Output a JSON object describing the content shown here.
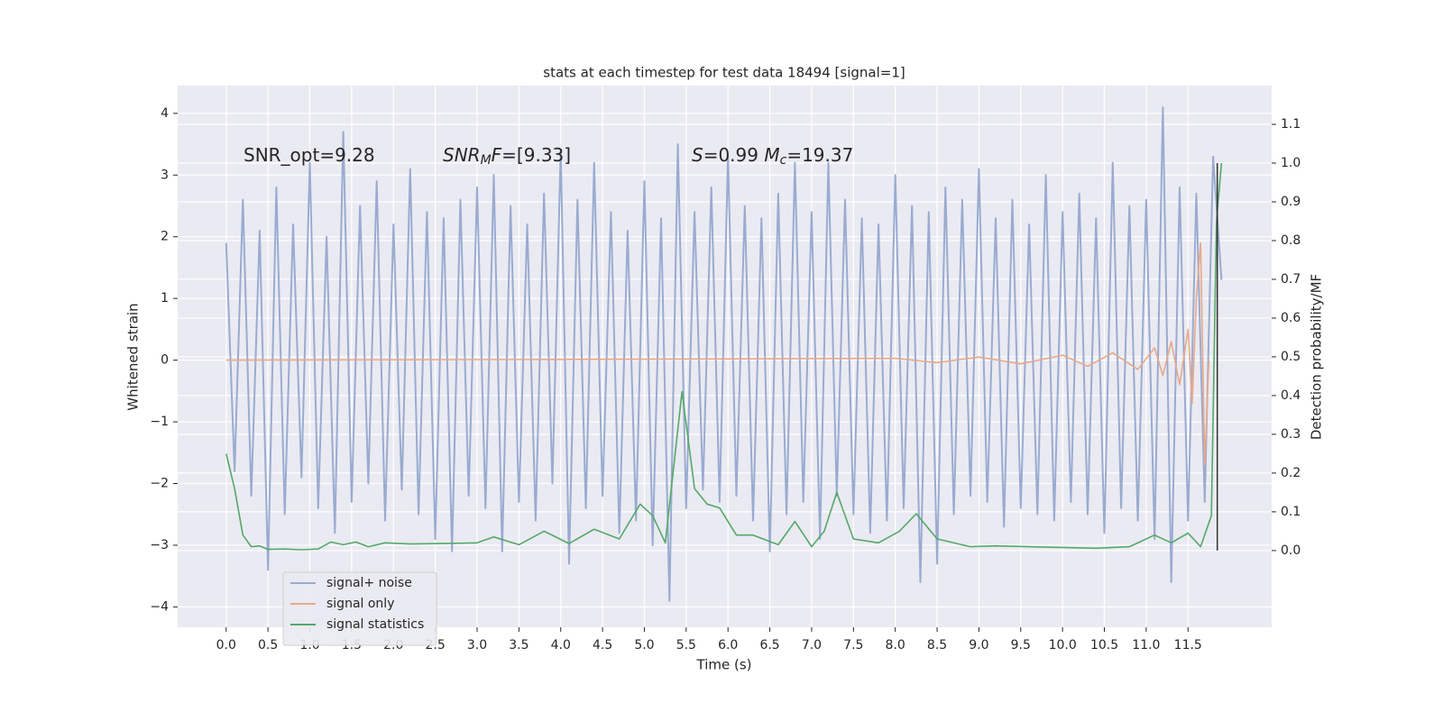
{
  "chart_data": {
    "type": "line",
    "title": "stats at each timestep for test data 18494 [signal=1]",
    "x_label": "Time (s)",
    "y_label": "Whitened strain",
    "y2_label": "Detection probability/MF",
    "xlim": [
      -0.58,
      12.5
    ],
    "ylim": [
      -4.33,
      4.45
    ],
    "y2lim": [
      -0.198,
      1.2
    ],
    "grid": true,
    "legend": "lower left",
    "xticks": [
      {
        "value": 0,
        "label": "0.0"
      },
      0.5,
      {
        "value": 1,
        "label": "1.0"
      },
      1.5,
      {
        "value": 2,
        "label": "2.0"
      },
      2.5,
      {
        "value": 3,
        "label": "3.0"
      },
      3.5,
      {
        "value": 4,
        "label": "4.0"
      },
      4.5,
      {
        "value": 5,
        "label": "5.0"
      },
      5.5,
      {
        "value": 6,
        "label": "6.0"
      },
      6.5,
      {
        "value": 7,
        "label": "7.0"
      },
      7.5,
      {
        "value": 8,
        "label": "8.0"
      },
      8.5,
      {
        "value": 9,
        "label": "9.0"
      },
      9.5,
      {
        "value": 10,
        "label": "10.0"
      },
      10.5,
      {
        "value": 11,
        "label": "11.0"
      },
      11.5
    ],
    "yticks": [
      {
        "value": -4,
        "label": "−4"
      },
      {
        "value": -3,
        "label": "−3"
      },
      {
        "value": -2,
        "label": "−2"
      },
      {
        "value": -1,
        "label": "−1"
      },
      0,
      1,
      2,
      3,
      4
    ],
    "y2ticks": [
      {
        "value": 0,
        "label": "0.0"
      },
      0.1,
      0.2,
      0.3,
      0.4,
      0.5,
      0.6,
      0.7,
      0.8,
      0.9,
      {
        "value": 1,
        "label": "1.0"
      },
      1.1
    ],
    "annotations": [
      [
        {
          "t": "SNR_opt=9.28",
          "style": "normal"
        }
      ],
      [
        {
          "t": "SNR",
          "style": "italic"
        },
        {
          "t": "M",
          "style": "sub"
        },
        {
          "t": "F",
          "style": "italic"
        },
        {
          "t": "=[9.33]",
          "style": "normal"
        }
      ],
      [
        {
          "t": "S",
          "style": "italic"
        },
        {
          "t": "=0.99   ",
          "style": "normal"
        },
        {
          "t": "M",
          "style": "italic"
        },
        {
          "t": "c",
          "style": "sub"
        },
        {
          "t": "=19.37",
          "style": "normal"
        }
      ]
    ],
    "series": [
      {
        "name": "signal+ noise",
        "color": "#9aabd0",
        "axis": "y",
        "x": [
          0.0,
          0.1,
          0.2,
          0.3,
          0.4,
          0.5,
          0.6,
          0.7,
          0.8,
          0.9,
          1.0,
          1.1,
          1.2,
          1.3,
          1.4,
          1.5,
          1.6,
          1.7,
          1.8,
          1.9,
          2.0,
          2.1,
          2.2,
          2.3,
          2.4,
          2.5,
          2.6,
          2.7,
          2.8,
          2.9,
          3.0,
          3.1,
          3.2,
          3.3,
          3.4,
          3.5,
          3.6,
          3.7,
          3.8,
          3.9,
          4.0,
          4.1,
          4.2,
          4.3,
          4.4,
          4.5,
          4.6,
          4.7,
          4.8,
          4.9,
          5.0,
          5.1,
          5.2,
          5.3,
          5.4,
          5.5,
          5.6,
          5.7,
          5.8,
          5.9,
          6.0,
          6.1,
          6.2,
          6.3,
          6.4,
          6.5,
          6.6,
          6.7,
          6.8,
          6.9,
          7.0,
          7.1,
          7.2,
          7.3,
          7.4,
          7.5,
          7.6,
          7.7,
          7.8,
          7.9,
          8.0,
          8.1,
          8.2,
          8.3,
          8.4,
          8.5,
          8.6,
          8.7,
          8.8,
          8.9,
          9.0,
          9.1,
          9.2,
          9.3,
          9.4,
          9.5,
          9.6,
          9.7,
          9.8,
          9.9,
          10.0,
          10.1,
          10.2,
          10.3,
          10.4,
          10.5,
          10.6,
          10.7,
          10.8,
          10.9,
          11.0,
          11.1,
          11.2,
          11.3,
          11.4,
          11.5,
          11.6,
          11.7,
          11.8,
          11.9
        ],
        "values": [
          1.9,
          -1.8,
          2.6,
          -2.2,
          2.1,
          -3.4,
          2.8,
          -2.5,
          2.2,
          -1.9,
          3.2,
          -2.4,
          2.0,
          -2.8,
          3.7,
          -2.3,
          2.5,
          -2.0,
          2.9,
          -2.6,
          2.2,
          -2.1,
          3.1,
          -2.5,
          2.4,
          -2.9,
          2.3,
          -3.1,
          2.6,
          -2.2,
          2.8,
          -2.4,
          3.0,
          -3.1,
          2.5,
          -2.3,
          2.2,
          -2.6,
          2.7,
          -2.0,
          3.4,
          -3.3,
          2.6,
          -2.4,
          3.2,
          -2.2,
          2.4,
          -2.8,
          2.1,
          -2.6,
          2.9,
          -3.0,
          2.3,
          -3.9,
          3.5,
          -2.4,
          2.4,
          -2.1,
          2.8,
          -2.3,
          3.3,
          -2.2,
          2.5,
          -2.6,
          2.3,
          -3.1,
          2.7,
          -2.5,
          3.2,
          -2.3,
          2.4,
          -2.9,
          3.2,
          -2.2,
          2.6,
          -2.5,
          2.3,
          -2.8,
          2.2,
          -2.6,
          3.0,
          -2.4,
          2.5,
          -3.6,
          2.4,
          -3.3,
          2.8,
          -2.5,
          2.6,
          -2.2,
          3.1,
          -2.3,
          2.3,
          -2.7,
          2.6,
          -2.4,
          2.2,
          -2.5,
          3.0,
          -2.6,
          2.4,
          -2.3,
          2.7,
          -2.5,
          2.3,
          -2.8,
          3.2,
          -2.4,
          2.5,
          -2.6,
          2.6,
          -2.9,
          4.1,
          -3.6,
          2.8,
          -2.6,
          2.7,
          -2.3,
          3.3,
          1.3
        ]
      },
      {
        "name": "signal only",
        "color": "#e8a98a",
        "axis": "y",
        "x": [
          0.0,
          4.0,
          8.0,
          8.5,
          9.0,
          9.5,
          10.0,
          10.3,
          10.6,
          10.9,
          11.1,
          11.2,
          11.3,
          11.4,
          11.5,
          11.55,
          11.6,
          11.65,
          11.7,
          11.75
        ],
        "values": [
          0,
          0.01,
          0.03,
          -0.04,
          0.05,
          -0.06,
          0.08,
          -0.1,
          0.12,
          -0.15,
          0.2,
          -0.25,
          0.3,
          -0.4,
          0.5,
          -0.7,
          1.0,
          1.9,
          -1.7,
          0
        ]
      },
      {
        "name": "signal statistics",
        "color": "#55a868",
        "axis": "y2",
        "x": [
          0.0,
          0.1,
          0.2,
          0.3,
          0.4,
          0.5,
          0.7,
          0.9,
          1.1,
          1.25,
          1.4,
          1.55,
          1.7,
          1.9,
          2.2,
          2.6,
          3.0,
          3.2,
          3.5,
          3.8,
          4.1,
          4.4,
          4.7,
          4.95,
          5.1,
          5.25,
          5.45,
          5.6,
          5.75,
          5.9,
          6.1,
          6.3,
          6.6,
          6.8,
          7.0,
          7.15,
          7.3,
          7.5,
          7.8,
          8.05,
          8.25,
          8.5,
          8.9,
          9.2,
          9.6,
          10.0,
          10.4,
          10.8,
          11.1,
          11.3,
          11.5,
          11.65,
          11.78,
          11.84,
          11.9
        ],
        "values": [
          0.25,
          0.16,
          0.04,
          0.01,
          0.012,
          0.003,
          0.004,
          0.002,
          0.004,
          0.022,
          0.015,
          0.022,
          0.01,
          0.02,
          0.017,
          0.018,
          0.02,
          0.035,
          0.015,
          0.05,
          0.018,
          0.055,
          0.03,
          0.12,
          0.09,
          0.02,
          0.41,
          0.16,
          0.12,
          0.11,
          0.04,
          0.04,
          0.015,
          0.075,
          0.01,
          0.05,
          0.15,
          0.03,
          0.02,
          0.05,
          0.095,
          0.03,
          0.01,
          0.012,
          0.01,
          0.008,
          0.006,
          0.01,
          0.04,
          0.02,
          0.045,
          0.01,
          0.09,
          0.85,
          1.0
        ]
      }
    ],
    "vlines": [
      {
        "x": 11.85,
        "ymin": 0,
        "ymax": 1,
        "color": "#333333",
        "axis": "y2"
      }
    ]
  }
}
